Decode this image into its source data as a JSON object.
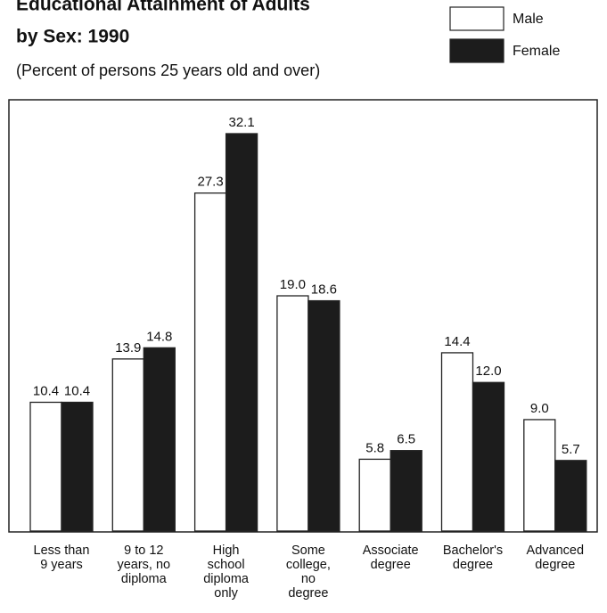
{
  "chart_data": {
    "type": "bar",
    "title": "Educational Attainment of Adults",
    "title_line2": "by Sex: 1990",
    "subtitle": "(Percent of persons 25 years old and over)",
    "categories": [
      [
        "Less than",
        "9 years"
      ],
      [
        "9 to 12",
        "years, no",
        "diploma"
      ],
      [
        "High",
        "school",
        "diploma",
        "only"
      ],
      [
        "Some",
        "college,",
        "no",
        "degree"
      ],
      [
        "Associate",
        "degree"
      ],
      [
        "Bachelor's",
        "degree"
      ],
      [
        "Advanced",
        "degree"
      ]
    ],
    "series": [
      {
        "name": "Male",
        "color": "#ffffff",
        "values": [
          10.4,
          13.9,
          27.3,
          19.0,
          5.8,
          14.4,
          9.0
        ],
        "value_labels": [
          "10.4",
          "13.9",
          "27.3",
          "19.0",
          "5.8",
          "14.4",
          "9.0"
        ]
      },
      {
        "name": "Female",
        "color": "#1c1c1c",
        "values": [
          10.4,
          14.8,
          32.1,
          18.6,
          6.5,
          12.0,
          5.7
        ],
        "value_labels": [
          "10.4",
          "14.8",
          "32.1",
          "18.6",
          "6.5",
          "12.0",
          "5.7"
        ]
      }
    ]
  }
}
